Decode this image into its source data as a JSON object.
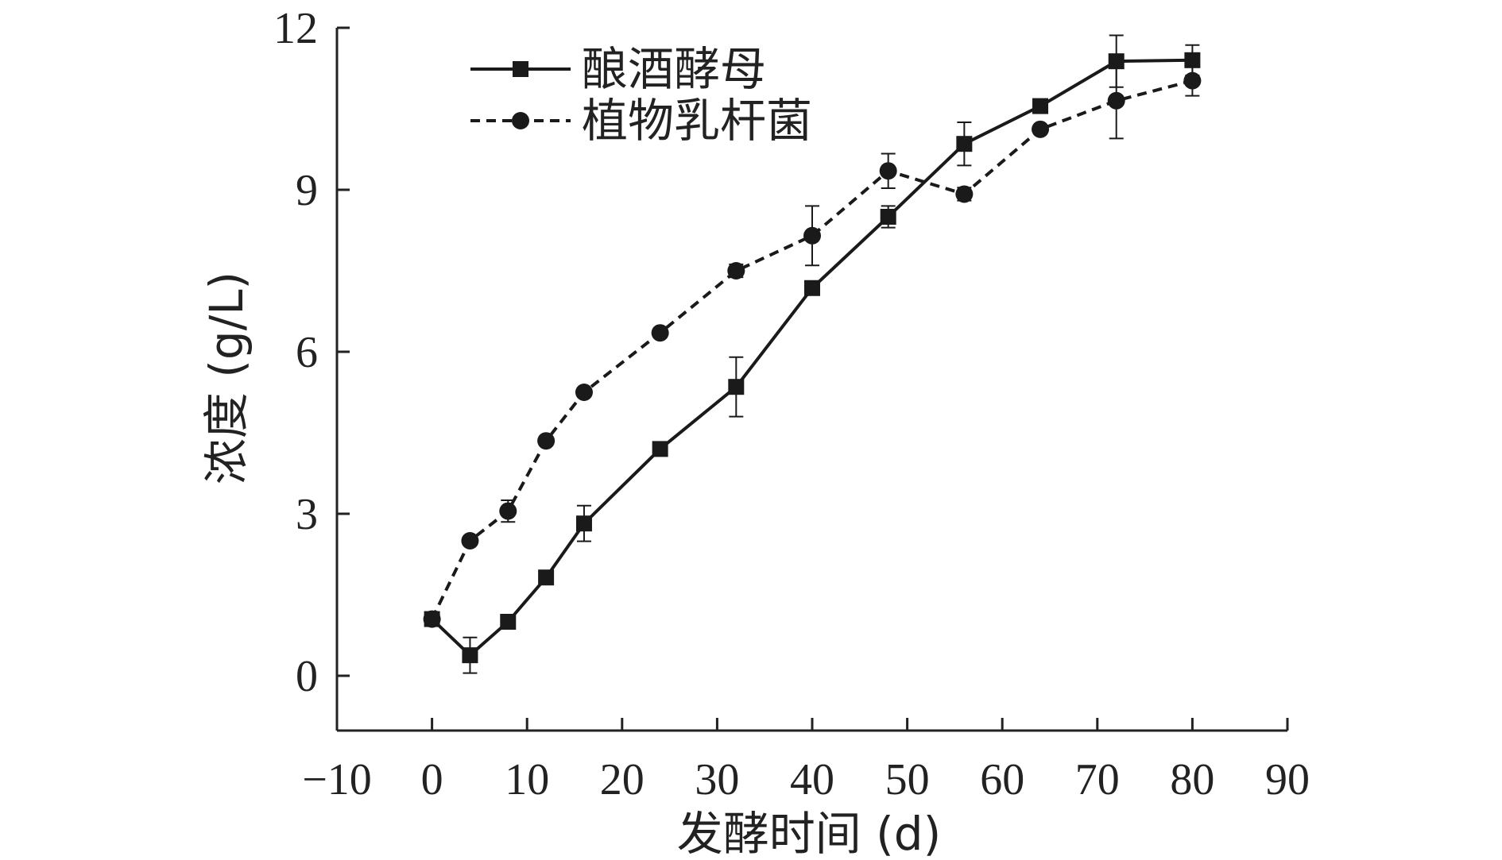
{
  "chart_data": {
    "type": "line",
    "xlabel": "发酵时间 (d)",
    "ylabel": "浓度 (g/L)",
    "xlim": [
      -10,
      90
    ],
    "ylim": [
      0,
      12
    ],
    "xticks": [
      -10,
      0,
      10,
      20,
      30,
      40,
      50,
      60,
      70,
      80,
      90
    ],
    "yticks": [
      0,
      3,
      6,
      9,
      12
    ],
    "xtick_labels": [
      "−10",
      "0",
      "10",
      "20",
      "30",
      "40",
      "50",
      "60",
      "70",
      "80",
      "90"
    ],
    "ytick_labels": [
      "0",
      "3",
      "6",
      "9",
      "12"
    ],
    "legend_position": "top-left",
    "grid": false,
    "series": [
      {
        "name": "酿酒酵母",
        "marker": "square",
        "line_style": "solid",
        "color": "#1a1a1a",
        "x": [
          0,
          4,
          8,
          12,
          16,
          24,
          32,
          40,
          48,
          56,
          64,
          72,
          80
        ],
        "y": [
          1.05,
          0.38,
          1.0,
          1.82,
          2.82,
          4.2,
          5.35,
          7.18,
          8.5,
          9.85,
          10.55,
          11.38,
          11.4
        ],
        "error": [
          0.08,
          0.33,
          0.06,
          0.07,
          0.33,
          0.08,
          0.55,
          0.08,
          0.2,
          0.4,
          0.08,
          0.48,
          0.28
        ]
      },
      {
        "name": "植物乳杆菌",
        "marker": "circle",
        "line_style": "dashed",
        "color": "#1a1a1a",
        "x": [
          0,
          4,
          8,
          12,
          16,
          24,
          32,
          40,
          48,
          56,
          64,
          72,
          80
        ],
        "y": [
          1.05,
          2.5,
          3.05,
          4.35,
          5.25,
          6.35,
          7.5,
          8.15,
          9.35,
          8.92,
          10.12,
          10.65,
          11.02
        ],
        "error": [
          0.06,
          0.08,
          0.2,
          0.08,
          0.08,
          0.08,
          0.12,
          0.55,
          0.32,
          0.12,
          0.08,
          0.7,
          0.28
        ]
      }
    ]
  }
}
